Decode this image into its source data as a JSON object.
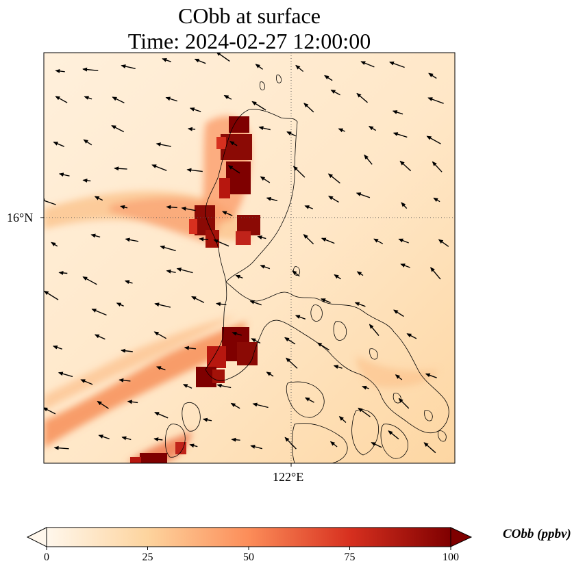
{
  "title": {
    "line1": "CObb at surface",
    "line2": "Time: 2024-02-27 12:00:00"
  },
  "map": {
    "lat_tick_label": "16°N",
    "lon_tick_label": "122°E",
    "gridlines": "dotted",
    "field": "CObb",
    "vectors": "wind arrows",
    "coastlines": true
  },
  "colorbar": {
    "label": "CObb (ppbv)",
    "colormap": "OrRd",
    "extend": "both",
    "range": [
      0,
      100
    ],
    "ticks": [
      "0",
      "25",
      "50",
      "75",
      "100"
    ],
    "colors": [
      "#fff7ec",
      "#fdd49e",
      "#fc8d59",
      "#d7301f",
      "#7f0000"
    ]
  }
}
